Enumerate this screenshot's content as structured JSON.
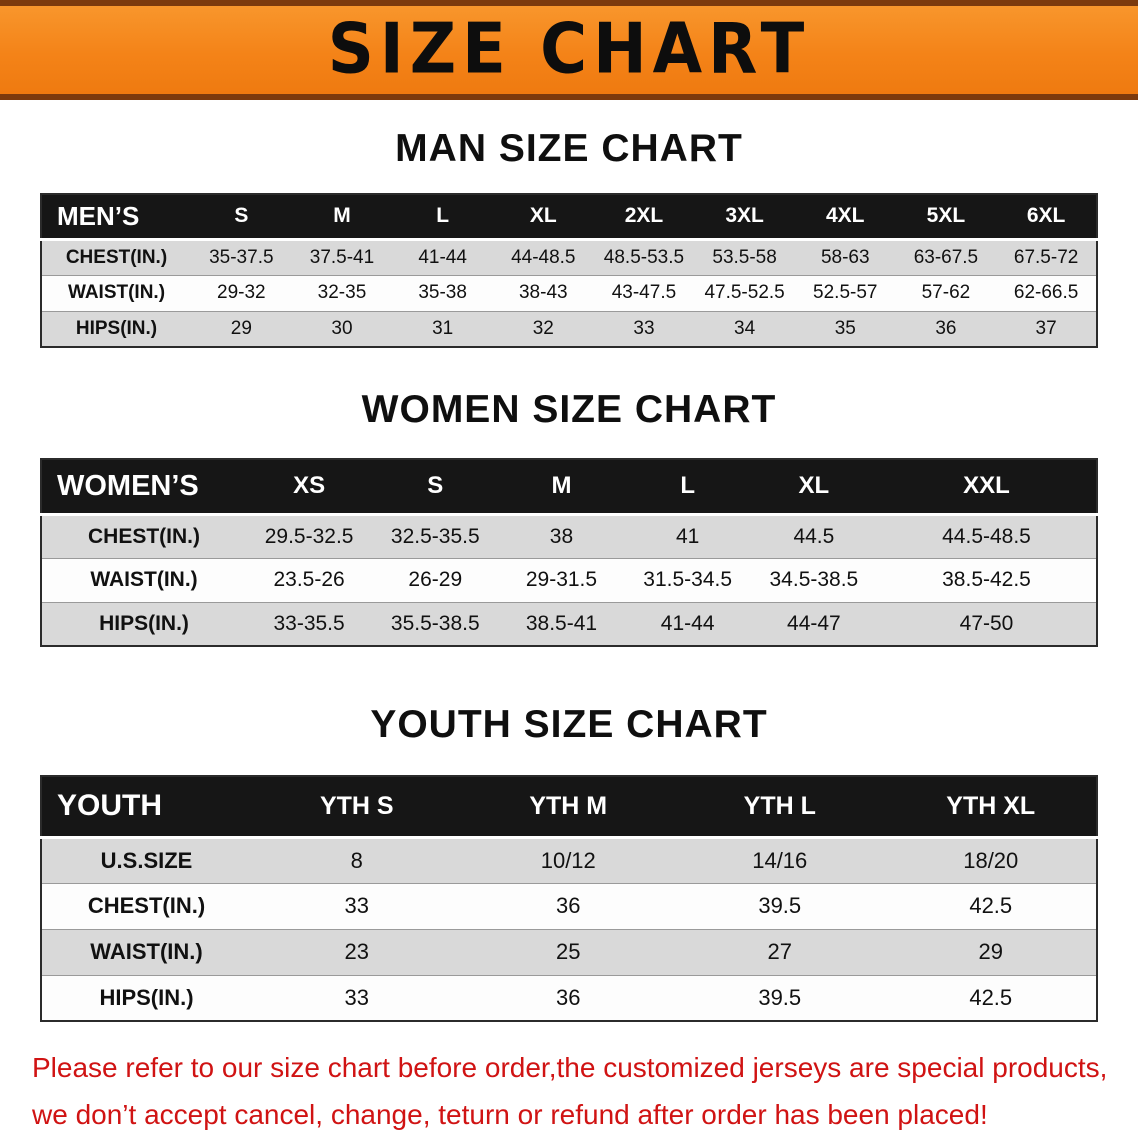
{
  "banner": {
    "title": "SIZE CHART"
  },
  "colors": {
    "banner_orange": "#f48318",
    "banner_edge_brown": "#7c3a0d",
    "table_header_black": "#161616",
    "row_stripe_gray": "#d9d9d9",
    "disclaimer_red": "#d01313"
  },
  "sections": [
    {
      "heading": "MAN SIZE CHART",
      "table": {
        "header_label": "MEN’S",
        "columns": [
          "S",
          "M",
          "L",
          "XL",
          "2XL",
          "3XL",
          "4XL",
          "5XL",
          "6XL"
        ],
        "rows": [
          {
            "label": "CHEST(IN.)",
            "values": [
              "35-37.5",
              "37.5-41",
              "41-44",
              "44-48.5",
              "48.5-53.5",
              "53.5-58",
              "58-63",
              "63-67.5",
              "67.5-72"
            ]
          },
          {
            "label": "WAIST(IN.)",
            "values": [
              "29-32",
              "32-35",
              "35-38",
              "38-43",
              "43-47.5",
              "47.5-52.5",
              "52.5-57",
              "57-62",
              "62-66.5"
            ]
          },
          {
            "label": "HIPS(IN.)",
            "values": [
              "29",
              "30",
              "31",
              "32",
              "33",
              "34",
              "35",
              "36",
              "37"
            ]
          }
        ]
      }
    },
    {
      "heading": "WOMEN SIZE CHART",
      "table": {
        "header_label": "WOMEN’S",
        "columns": [
          "XS",
          "S",
          "M",
          "L",
          "XL",
          "XXL"
        ],
        "rows": [
          {
            "label": "CHEST(IN.)",
            "values": [
              "29.5-32.5",
              "32.5-35.5",
              "38",
              "41",
              "44.5",
              "44.5-48.5"
            ]
          },
          {
            "label": "WAIST(IN.)",
            "values": [
              "23.5-26",
              "26-29",
              "29-31.5",
              "31.5-34.5",
              "34.5-38.5",
              "38.5-42.5"
            ]
          },
          {
            "label": "HIPS(IN.)",
            "values": [
              "33-35.5",
              "35.5-38.5",
              "38.5-41",
              "41-44",
              "44-47",
              "47-50"
            ]
          }
        ]
      }
    },
    {
      "heading": "YOUTH SIZE CHART",
      "table": {
        "header_label": "YOUTH",
        "columns": [
          "YTH S",
          "YTH M",
          "YTH L",
          "YTH XL"
        ],
        "rows": [
          {
            "label": "U.S.SIZE",
            "values": [
              "8",
              "10/12",
              "14/16",
              "18/20"
            ]
          },
          {
            "label": "CHEST(IN.)",
            "values": [
              "33",
              "36",
              "39.5",
              "42.5"
            ]
          },
          {
            "label": "WAIST(IN.)",
            "values": [
              "23",
              "25",
              "27",
              "29"
            ]
          },
          {
            "label": "HIPS(IN.)",
            "values": [
              "33",
              "36",
              "39.5",
              "42.5"
            ]
          }
        ]
      }
    }
  ],
  "disclaimer": {
    "line1": "Please refer to our size chart before order,the customized jerseys are special products,",
    "line2": "we don’t accept cancel, change, teturn or refund after order has been placed!"
  }
}
